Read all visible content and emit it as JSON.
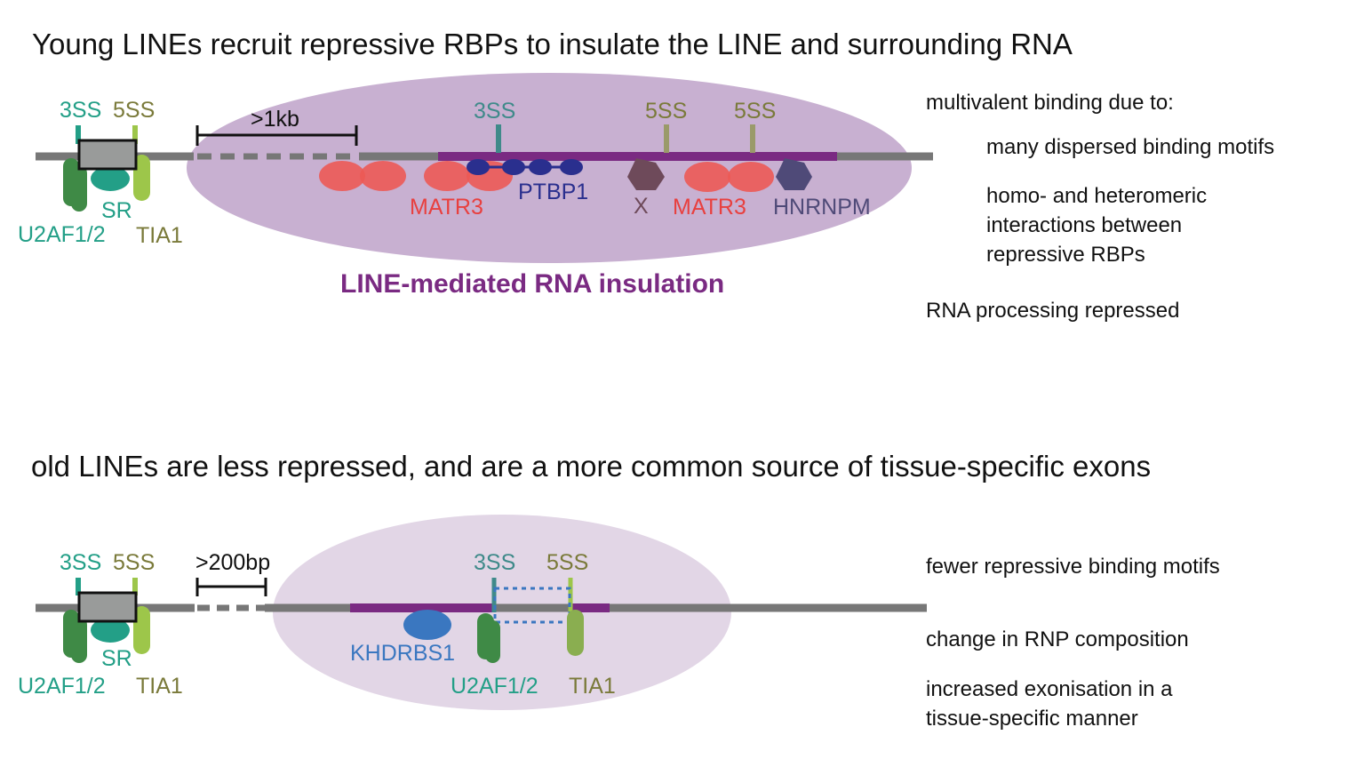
{
  "colors": {
    "gray_line": "#777777",
    "exon_fill": "#999b9a",
    "purple": "#7a2a82",
    "ellipse_top": "#c8b0d1",
    "ellipse_bottom": "#e2d6e6",
    "teal": "#239f87",
    "olive": "#7a7a3a",
    "green_dark": "#3f8a46",
    "green_light": "#9dc64a",
    "red": "#e8403f",
    "red_fill": "#ec5a55",
    "navy": "#2a2f8e",
    "x_brown": "#6e4a5a",
    "hnrnpm": "#4f4a78",
    "khdrbs1": "#3a77c0"
  },
  "top": {
    "title": "Young LINEs recruit repressive RBPs to insulate the LINE and surrounding RNA",
    "exon_labels": {
      "ss3": "3SS",
      "ss5": "5SS"
    },
    "exon_proteins": {
      "sr": "SR",
      "u2af": "U2AF1/2",
      "tia1": "TIA1"
    },
    "distance": ">1kb",
    "line_sites": {
      "ss3": "3SS",
      "ss5_a": "5SS",
      "ss5_b": "5SS"
    },
    "rbps": {
      "matr3_a": "MATR3",
      "ptbp1": "PTBP1",
      "x": "X",
      "matr3_b": "MATR3",
      "hnrnpm": "HNRNPM"
    },
    "insulation_label": "LINE-mediated RNA insulation",
    "notes": {
      "heading": "multivalent binding due to:",
      "point1": "many dispersed binding motifs",
      "point2_lines": [
        "homo- and heteromeric",
        "interactions between",
        "repressive RBPs"
      ],
      "conclusion": "RNA processing repressed"
    }
  },
  "bottom": {
    "title": "old LINEs are less repressed, and are a more common source of tissue-specific exons",
    "exon_labels": {
      "ss3": "3SS",
      "ss5": "5SS"
    },
    "exon_proteins": {
      "sr": "SR",
      "u2af": "U2AF1/2",
      "tia1": "TIA1"
    },
    "distance": ">200bp",
    "line_sites": {
      "ss3": "3SS",
      "ss5": "5SS"
    },
    "rbps": {
      "khdrbs1": "KHDRBS1",
      "u2af": "U2AF1/2",
      "tia1": "TIA1"
    },
    "notes": {
      "point1": "fewer repressive binding motifs",
      "point2": "change in RNP composition",
      "point3_lines": [
        "increased exonisation in a",
        "tissue-specific manner"
      ]
    }
  }
}
